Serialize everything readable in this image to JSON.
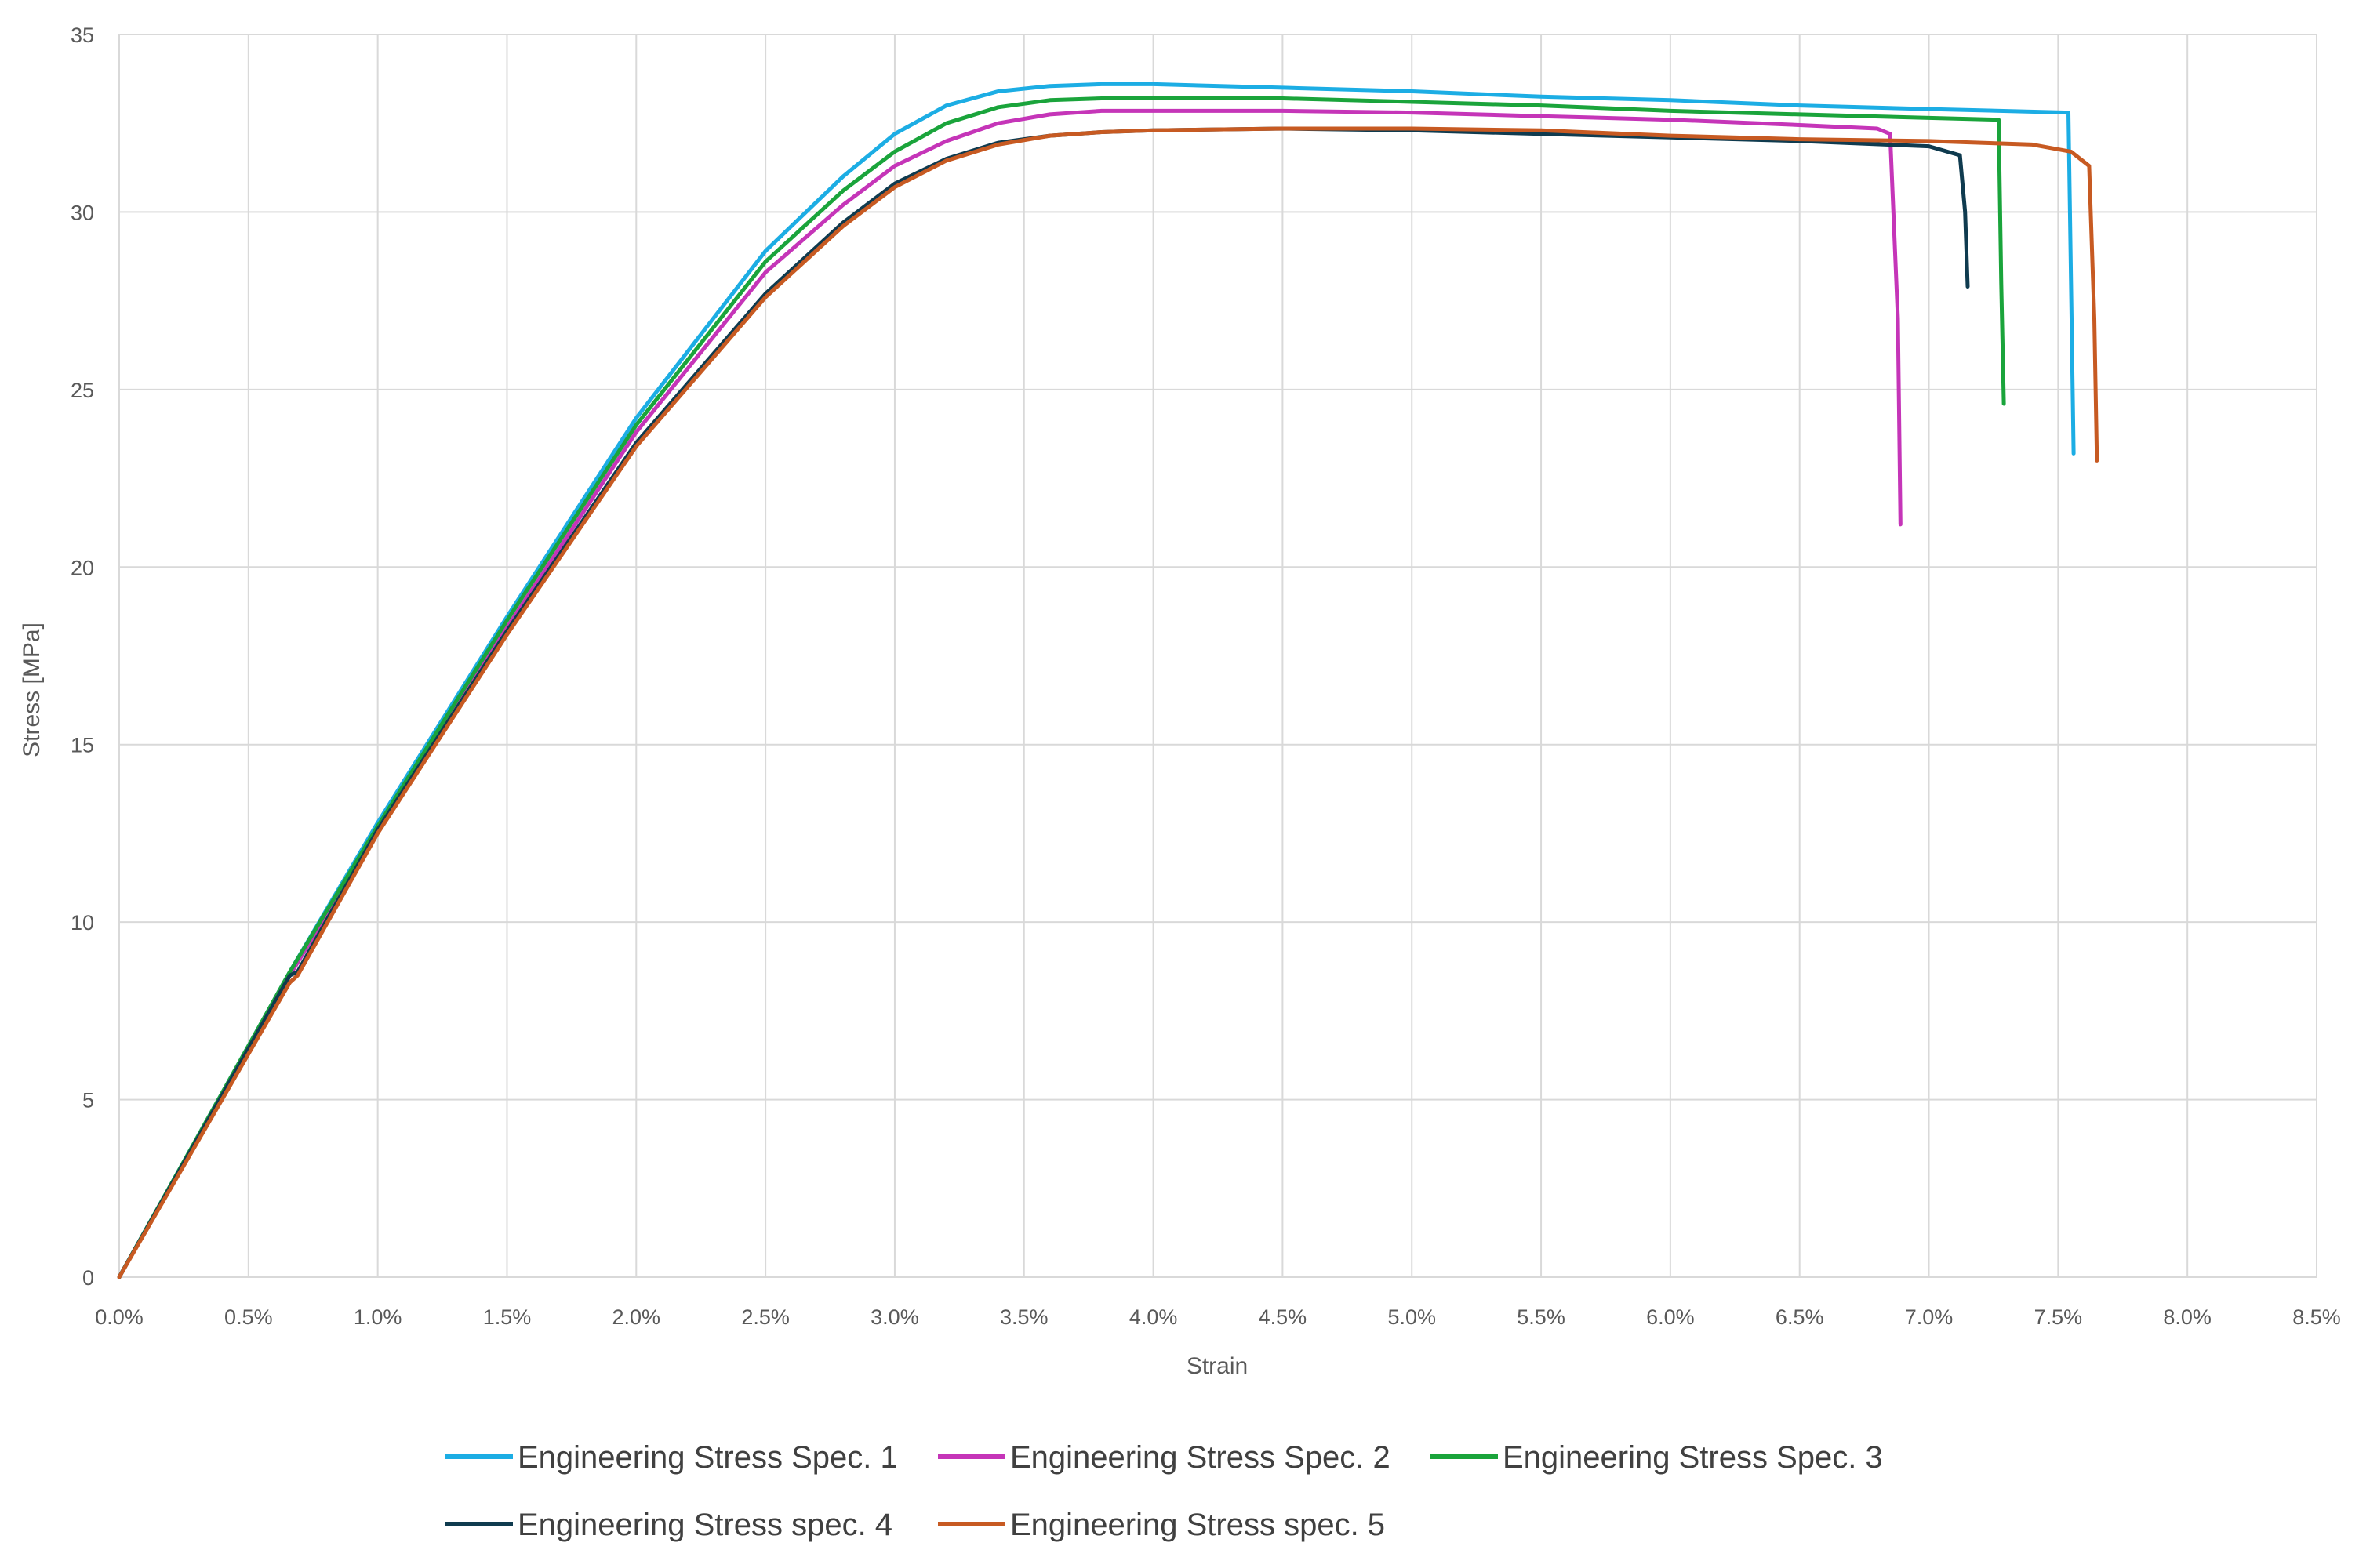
{
  "chart_data": {
    "type": "line",
    "title": "",
    "xlabel": "Strain",
    "ylabel": "Stress [MPa]",
    "xlim": [
      0,
      0.085
    ],
    "ylim": [
      0,
      35
    ],
    "x_ticks": [
      0,
      0.005,
      0.01,
      0.015,
      0.02,
      0.025,
      0.03,
      0.035,
      0.04,
      0.045,
      0.05,
      0.055,
      0.06,
      0.065,
      0.07,
      0.075,
      0.08,
      0.085
    ],
    "x_tick_labels": [
      "0.0%",
      "0.5%",
      "1.0%",
      "1.5%",
      "2.0%",
      "2.5%",
      "3.0%",
      "3.5%",
      "4.0%",
      "4.5%",
      "5.0%",
      "5.5%",
      "6.0%",
      "6.5%",
      "7.0%",
      "7.5%",
      "8.0%",
      "8.5%"
    ],
    "y_ticks": [
      0,
      5,
      10,
      15,
      20,
      25,
      30,
      35
    ],
    "y_tick_labels": [
      "0",
      "5",
      "10",
      "15",
      "20",
      "25",
      "30",
      "35"
    ],
    "grid": true,
    "legend_position": "bottom",
    "series": [
      {
        "name": "Engineering Stress Spec. 1",
        "color": "#1cade4",
        "x": [
          0,
          0.0066,
          0.01,
          0.015,
          0.02,
          0.025,
          0.028,
          0.03,
          0.032,
          0.034,
          0.036,
          0.038,
          0.04,
          0.045,
          0.05,
          0.055,
          0.06,
          0.065,
          0.07,
          0.0754,
          0.0755,
          0.0756
        ],
        "y": [
          0,
          8.6,
          12.8,
          18.6,
          24.2,
          28.9,
          31.0,
          32.2,
          33.0,
          33.4,
          33.55,
          33.6,
          33.6,
          33.5,
          33.4,
          33.25,
          33.15,
          33.0,
          32.9,
          32.8,
          28.0,
          23.2
        ]
      },
      {
        "name": "Engineering Stress Spec. 2",
        "color": "#c535b8",
        "x": [
          0,
          0.0066,
          0.01,
          0.015,
          0.02,
          0.025,
          0.028,
          0.03,
          0.032,
          0.034,
          0.036,
          0.038,
          0.04,
          0.045,
          0.05,
          0.055,
          0.06,
          0.065,
          0.068,
          0.0685,
          0.0688,
          0.0689
        ],
        "y": [
          0,
          8.5,
          12.6,
          18.3,
          23.8,
          28.3,
          30.2,
          31.3,
          32.0,
          32.5,
          32.75,
          32.85,
          32.85,
          32.85,
          32.8,
          32.7,
          32.6,
          32.45,
          32.35,
          32.2,
          27.0,
          21.2
        ]
      },
      {
        "name": "Engineering Stress Spec. 3",
        "color": "#1aa43b",
        "x": [
          0,
          0.0066,
          0.01,
          0.015,
          0.02,
          0.025,
          0.028,
          0.03,
          0.032,
          0.034,
          0.036,
          0.038,
          0.04,
          0.045,
          0.05,
          0.055,
          0.06,
          0.065,
          0.07,
          0.0727,
          0.0728,
          0.0729
        ],
        "y": [
          0,
          8.6,
          12.7,
          18.5,
          24.0,
          28.6,
          30.6,
          31.7,
          32.5,
          32.95,
          33.15,
          33.2,
          33.2,
          33.2,
          33.1,
          33.0,
          32.85,
          32.75,
          32.65,
          32.6,
          28.0,
          24.6
        ]
      },
      {
        "name": "Engineering Stress spec. 4",
        "color": "#0f3b4f",
        "x": [
          0,
          0.0066,
          0.0069,
          0.01,
          0.015,
          0.02,
          0.025,
          0.028,
          0.03,
          0.032,
          0.034,
          0.036,
          0.038,
          0.04,
          0.045,
          0.05,
          0.055,
          0.06,
          0.065,
          0.07,
          0.0712,
          0.0714,
          0.0715
        ],
        "y": [
          0,
          8.5,
          8.6,
          12.6,
          18.2,
          23.5,
          27.7,
          29.7,
          30.8,
          31.5,
          31.95,
          32.15,
          32.25,
          32.3,
          32.35,
          32.3,
          32.2,
          32.1,
          32.0,
          31.85,
          31.6,
          30.0,
          27.9
        ]
      },
      {
        "name": "Engineering Stress spec. 5",
        "color": "#c75a22",
        "x": [
          0,
          0.0066,
          0.0069,
          0.01,
          0.015,
          0.02,
          0.025,
          0.028,
          0.03,
          0.032,
          0.034,
          0.036,
          0.038,
          0.04,
          0.045,
          0.05,
          0.055,
          0.06,
          0.065,
          0.07,
          0.072,
          0.074,
          0.0755,
          0.0762,
          0.0764,
          0.0765
        ],
        "y": [
          0,
          8.3,
          8.5,
          12.5,
          18.1,
          23.4,
          27.6,
          29.6,
          30.7,
          31.45,
          31.9,
          32.15,
          32.25,
          32.3,
          32.35,
          32.35,
          32.3,
          32.15,
          32.05,
          32.0,
          31.95,
          31.9,
          31.7,
          31.3,
          27.0,
          23.0
        ]
      }
    ]
  }
}
